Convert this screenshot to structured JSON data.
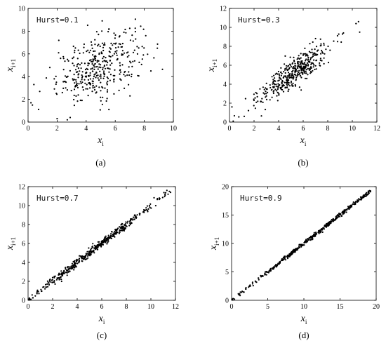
{
  "chart_data": [
    {
      "type": "scatter",
      "panel_label": "(a)",
      "annotation": "Hurst=0.1",
      "xlabel": "x",
      "xlabel_sub": "i",
      "ylabel": "x",
      "ylabel_sub": "i+1",
      "xlim": [
        0,
        10
      ],
      "ylim": [
        0,
        10
      ],
      "xticks": [
        0,
        2,
        4,
        6,
        8,
        10
      ],
      "yticks": [
        0,
        2,
        4,
        6,
        8,
        10
      ],
      "grid": false,
      "cloud": {
        "n": 380,
        "center": [
          4.9,
          4.9
        ],
        "spread": 1.45,
        "slope": 0.5,
        "noise": 1.35
      },
      "points": [
        [
          5.1,
          8.9
        ],
        [
          0.2,
          1.7
        ],
        [
          0.3,
          1.5
        ],
        [
          0.4,
          3.3
        ],
        [
          0.8,
          2.7
        ],
        [
          2.0,
          0.3
        ],
        [
          2.7,
          0.2
        ],
        [
          2.9,
          0.4
        ],
        [
          8.9,
          6.5
        ],
        [
          8.1,
          7.6
        ],
        [
          1.5,
          4.8
        ],
        [
          2.1,
          6.1
        ],
        [
          6.6,
          7.9
        ]
      ]
    },
    {
      "type": "scatter",
      "panel_label": "(b)",
      "annotation": "Hurst=0.3",
      "xlabel": "x",
      "xlabel_sub": "i",
      "ylabel": "x",
      "ylabel_sub": "i+1",
      "xlim": [
        0,
        12
      ],
      "ylim": [
        0,
        12
      ],
      "xticks": [
        0,
        2,
        4,
        6,
        8,
        10,
        12
      ],
      "yticks": [
        0,
        2,
        4,
        6,
        8,
        10,
        12
      ],
      "grid": false,
      "cloud": {
        "n": 420,
        "center": [
          5.2,
          5.2
        ],
        "spread": 1.45,
        "slope": 0.88,
        "noise": 0.75
      },
      "points": [
        [
          0.3,
          0.1
        ],
        [
          0.2,
          1.6
        ],
        [
          10.3,
          10.4
        ],
        [
          10.5,
          10.6
        ],
        [
          10.6,
          9.5
        ],
        [
          9.2,
          9.3
        ],
        [
          8.8,
          8.5
        ],
        [
          1.2,
          0.6
        ]
      ]
    },
    {
      "type": "scatter",
      "panel_label": "(c)",
      "annotation": "Hurst=0.7",
      "xlabel": "x",
      "xlabel_sub": "i",
      "ylabel": "x",
      "ylabel_sub": "i+1",
      "xlim": [
        0,
        12
      ],
      "ylim": [
        0,
        12
      ],
      "xticks": [
        0,
        2,
        4,
        6,
        8,
        10,
        12
      ],
      "yticks": [
        0,
        2,
        4,
        6,
        8,
        10,
        12
      ],
      "grid": false,
      "cloud": {
        "n": 460,
        "center": [
          5.4,
          5.4
        ],
        "spread": 2.6,
        "slope": 1.0,
        "noise": 0.22,
        "min": 0.1,
        "max": 11.6
      },
      "points": [
        [
          11.3,
          11.6
        ],
        [
          11.5,
          11.5
        ],
        [
          11.6,
          11.4
        ],
        [
          11.4,
          11.2
        ],
        [
          0.1,
          0.2
        ],
        [
          0.2,
          0.1
        ]
      ]
    },
    {
      "type": "scatter",
      "panel_label": "(d)",
      "annotation": "Hurst=0.9",
      "xlabel": "x",
      "xlabel_sub": "i",
      "ylabel": "x",
      "ylabel_sub": "i+1",
      "xlim": [
        0,
        20
      ],
      "ylim": [
        0,
        20
      ],
      "xticks": [
        0,
        5,
        10,
        15,
        20
      ],
      "yticks": [
        0,
        5,
        10,
        15,
        20
      ],
      "grid": false,
      "cloud": {
        "n": 520,
        "center": [
          12.0,
          12.0
        ],
        "spread": 5.5,
        "slope": 1.0,
        "noise": 0.18,
        "min": 0.1,
        "max": 19.2
      },
      "points": [
        [
          0.1,
          0.1
        ],
        [
          0.2,
          0.3
        ],
        [
          0.4,
          0.2
        ],
        [
          19.1,
          19.3
        ],
        [
          19.2,
          19.1
        ],
        [
          18.9,
          19.2
        ]
      ]
    }
  ]
}
